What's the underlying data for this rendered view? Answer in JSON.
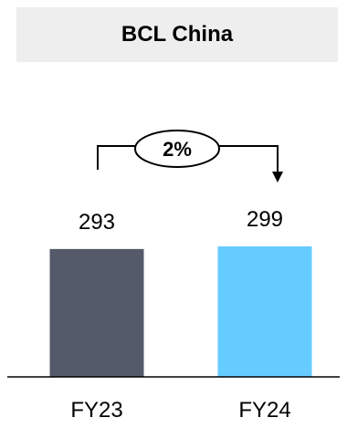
{
  "chart_data": {
    "type": "bar",
    "title": "BCL China",
    "categories": [
      "FY23",
      "FY24"
    ],
    "values": [
      293,
      299
    ],
    "ylim": [
      0,
      299
    ],
    "colors": [
      "#555a6b",
      "#66ccff"
    ],
    "growth_label": "2%",
    "grid": false,
    "legend": "none"
  }
}
